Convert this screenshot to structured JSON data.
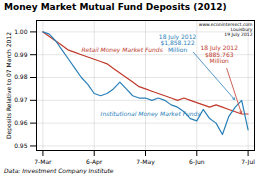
{
  "chart_data": {
    "type": "line",
    "title": "Money Market Mutual Fund Deposits (2012)",
    "ylabel": "Deposits Relative to 07 March 2012",
    "source": "Data: Investment Company Institute",
    "x": [
      0,
      1,
      2,
      3,
      4,
      5,
      6,
      7,
      8,
      9,
      10,
      11,
      12,
      13,
      14,
      15,
      16,
      17,
      18,
      19,
      20,
      21,
      22,
      23,
      24,
      25,
      26,
      27,
      28,
      29,
      30,
      31,
      32
    ],
    "xlim": [
      -1,
      33
    ],
    "xticks": [
      {
        "value": 0,
        "label": "7-Mar"
      },
      {
        "value": 8,
        "label": "6-Apr"
      },
      {
        "value": 16,
        "label": "7-May"
      },
      {
        "value": 24,
        "label": "6-Jun"
      },
      {
        "value": 32,
        "label": "7-Jul"
      }
    ],
    "ylim": [
      0.948,
      1.005
    ],
    "yticks": [
      0.95,
      0.96,
      0.97,
      0.98,
      0.99,
      {
        "value": 1.0,
        "label": "1.00"
      }
    ],
    "grid": true,
    "series": [
      {
        "name": "Retail Money Market Funds",
        "color": "#c0392b",
        "label_x": 6,
        "label_y": 0.991,
        "values": [
          1.0,
          0.998,
          0.996,
          0.994,
          0.992,
          0.991,
          0.99,
          0.989,
          0.988,
          0.987,
          0.986,
          0.984,
          0.982,
          0.98,
          0.978,
          0.976,
          0.975,
          0.974,
          0.973,
          0.972,
          0.971,
          0.97,
          0.971,
          0.97,
          0.969,
          0.968,
          0.967,
          0.968,
          0.967,
          0.966,
          0.965,
          0.964,
          0.964
        ]
      },
      {
        "name": "Institutional Money Market Funds",
        "color": "#2980b9",
        "label_x": 9,
        "label_y": 0.963,
        "values": [
          1.0,
          0.999,
          0.996,
          0.992,
          0.988,
          0.984,
          0.98,
          0.977,
          0.973,
          0.972,
          0.973,
          0.975,
          0.978,
          0.975,
          0.972,
          0.971,
          0.971,
          0.97,
          0.971,
          0.97,
          0.968,
          0.967,
          0.965,
          0.962,
          0.961,
          0.966,
          0.962,
          0.96,
          0.955,
          0.963,
          0.967,
          0.97,
          0.957
        ]
      }
    ],
    "annotations": [
      {
        "text": "18 July 2012\n$1,858.122\nMillion",
        "x": 30,
        "y": 0.97,
        "text_x": 21,
        "text_y": 0.999,
        "color": "#2980b9"
      },
      {
        "text": "18 July 2012\n$885.763\nMillion",
        "x": 31,
        "y": 0.964,
        "text_x": 27.5,
        "text_y": 0.994,
        "color": "#c0392b"
      },
      {
        "text": "www.econintersect.com\nLouisbury\n19 July 2012"
      }
    ]
  }
}
